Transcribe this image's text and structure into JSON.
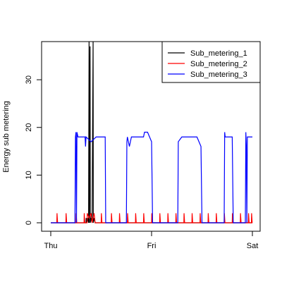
{
  "chart_data": {
    "type": "line",
    "xlabel": "",
    "ylabel": "Energy sub metering",
    "x_ticks": [
      "Thu",
      "Fri",
      "Sat"
    ],
    "xlim": [
      0,
      2
    ],
    "y_ticks": [
      0,
      10,
      20,
      30
    ],
    "ylim": [
      0,
      38
    ],
    "legend": {
      "position": "top-right"
    },
    "series": [
      {
        "name": "Sub_metering_1",
        "color": "#000000",
        "points": [
          [
            0,
            0
          ],
          [
            0.35,
            0
          ],
          [
            0.351,
            1
          ],
          [
            0.36,
            0
          ],
          [
            0.37,
            1
          ],
          [
            0.375,
            0
          ],
          [
            0.38,
            38
          ],
          [
            0.382,
            0
          ],
          [
            0.39,
            37
          ],
          [
            0.392,
            0
          ],
          [
            0.4,
            1
          ],
          [
            0.41,
            0
          ],
          [
            0.42,
            38
          ],
          [
            0.422,
            0
          ],
          [
            0.43,
            1
          ],
          [
            0.44,
            0
          ],
          [
            2,
            0
          ]
        ]
      },
      {
        "name": "Sub_metering_2",
        "color": "#ff0000",
        "points": [
          [
            0,
            0
          ],
          [
            0.06,
            0
          ],
          [
            0.062,
            2
          ],
          [
            0.068,
            0
          ],
          [
            0.15,
            0
          ],
          [
            0.152,
            2
          ],
          [
            0.158,
            0
          ],
          [
            0.25,
            0
          ],
          [
            0.252,
            2
          ],
          [
            0.258,
            0
          ],
          [
            0.33,
            0
          ],
          [
            0.332,
            2
          ],
          [
            0.338,
            0
          ],
          [
            0.36,
            0
          ],
          [
            0.362,
            2
          ],
          [
            0.38,
            1
          ],
          [
            0.4,
            2
          ],
          [
            0.41,
            0
          ],
          [
            0.43,
            2
          ],
          [
            0.44,
            0
          ],
          [
            0.5,
            0
          ],
          [
            0.502,
            2
          ],
          [
            0.508,
            0
          ],
          [
            0.6,
            0
          ],
          [
            0.602,
            2
          ],
          [
            0.608,
            0
          ],
          [
            0.68,
            0
          ],
          [
            0.682,
            2
          ],
          [
            0.688,
            0
          ],
          [
            0.76,
            0
          ],
          [
            0.762,
            2
          ],
          [
            0.768,
            0
          ],
          [
            0.84,
            0
          ],
          [
            0.842,
            2
          ],
          [
            0.848,
            0
          ],
          [
            0.92,
            0
          ],
          [
            0.922,
            2
          ],
          [
            0.928,
            0
          ],
          [
            1.0,
            0
          ],
          [
            1.002,
            2
          ],
          [
            1.008,
            0
          ],
          [
            1.08,
            0
          ],
          [
            1.082,
            2
          ],
          [
            1.088,
            0
          ],
          [
            1.16,
            0
          ],
          [
            1.162,
            2
          ],
          [
            1.168,
            0
          ],
          [
            1.24,
            0
          ],
          [
            1.242,
            2
          ],
          [
            1.248,
            0
          ],
          [
            1.32,
            0
          ],
          [
            1.322,
            2
          ],
          [
            1.328,
            0
          ],
          [
            1.4,
            0
          ],
          [
            1.402,
            2
          ],
          [
            1.408,
            0
          ],
          [
            1.48,
            0
          ],
          [
            1.482,
            2
          ],
          [
            1.488,
            0
          ],
          [
            1.56,
            0
          ],
          [
            1.562,
            2
          ],
          [
            1.568,
            0
          ],
          [
            1.64,
            0
          ],
          [
            1.642,
            2
          ],
          [
            1.648,
            0
          ],
          [
            1.72,
            0
          ],
          [
            1.722,
            2
          ],
          [
            1.728,
            0
          ],
          [
            1.8,
            0
          ],
          [
            1.802,
            2
          ],
          [
            1.808,
            0
          ],
          [
            1.88,
            0
          ],
          [
            1.882,
            2
          ],
          [
            1.888,
            0
          ],
          [
            1.96,
            0
          ],
          [
            1.962,
            2
          ],
          [
            1.968,
            0
          ],
          [
            1.99,
            0
          ],
          [
            1.992,
            2
          ],
          [
            1.998,
            0
          ],
          [
            2,
            0
          ]
        ]
      },
      {
        "name": "Sub_metering_3",
        "color": "#0000ff",
        "points": [
          [
            0,
            0
          ],
          [
            0.24,
            0
          ],
          [
            0.245,
            18
          ],
          [
            0.25,
            19
          ],
          [
            0.255,
            0
          ],
          [
            0.26,
            19
          ],
          [
            0.27,
            18
          ],
          [
            0.28,
            18
          ],
          [
            0.34,
            18
          ],
          [
            0.345,
            16
          ],
          [
            0.35,
            18
          ],
          [
            0.4,
            17
          ],
          [
            0.45,
            18
          ],
          [
            0.54,
            18
          ],
          [
            0.545,
            0
          ],
          [
            0.75,
            0
          ],
          [
            0.755,
            17
          ],
          [
            0.76,
            18
          ],
          [
            0.78,
            16
          ],
          [
            0.8,
            18
          ],
          [
            0.92,
            18
          ],
          [
            0.93,
            19
          ],
          [
            0.96,
            19
          ],
          [
            0.98,
            18
          ],
          [
            1.0,
            17
          ],
          [
            1.005,
            9
          ],
          [
            1.01,
            0
          ],
          [
            1.26,
            0
          ],
          [
            1.265,
            17
          ],
          [
            1.3,
            18
          ],
          [
            1.45,
            18
          ],
          [
            1.47,
            17
          ],
          [
            1.49,
            16
          ],
          [
            1.5,
            0
          ],
          [
            1.72,
            0
          ],
          [
            1.725,
            19
          ],
          [
            1.73,
            18
          ],
          [
            1.8,
            18
          ],
          [
            1.81,
            0
          ],
          [
            1.93,
            0
          ],
          [
            1.935,
            19
          ],
          [
            1.94,
            16
          ],
          [
            1.945,
            0
          ],
          [
            1.95,
            18
          ],
          [
            2,
            18
          ]
        ]
      }
    ]
  }
}
